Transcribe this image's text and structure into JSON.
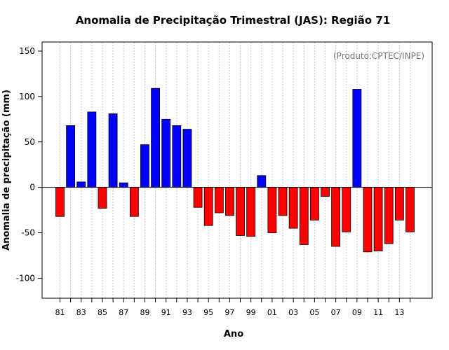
{
  "chart_data": {
    "type": "bar",
    "title": "Anomalia de Precipitação Trimestral (JAS): Região 71",
    "xlabel": "Ano",
    "ylabel": "Anomalia de precipitação (mm)",
    "annotation": "(Produto:CPTEC/INPE)",
    "ylim": [
      -122,
      160
    ],
    "yticks": [
      -100,
      -50,
      0,
      50,
      100,
      150
    ],
    "grid": "vertical dotted",
    "positive_color": "#0000ff",
    "negative_color": "#ff0000",
    "years": [
      "81",
      "82",
      "83",
      "84",
      "85",
      "86",
      "87",
      "88",
      "89",
      "90",
      "91",
      "92",
      "93",
      "94",
      "95",
      "96",
      "97",
      "98",
      "99",
      "00",
      "01",
      "02",
      "03",
      "04",
      "05",
      "06",
      "07",
      "08",
      "09",
      "10",
      "11",
      "12",
      "13",
      "14"
    ],
    "xtick_labels": [
      "81",
      "83",
      "85",
      "87",
      "89",
      "91",
      "93",
      "95",
      "97",
      "99",
      "01",
      "03",
      "05",
      "07",
      "09",
      "11",
      "13"
    ],
    "values": [
      -32,
      68,
      6,
      83,
      -23,
      81,
      5,
      -32,
      47,
      109,
      75,
      68,
      64,
      -22,
      -42,
      -28,
      -31,
      -53,
      -54,
      13,
      -50,
      -31,
      -45,
      -63,
      -36,
      -10,
      -65,
      -49,
      108,
      -71,
      -70,
      -62,
      -36,
      -49
    ]
  }
}
